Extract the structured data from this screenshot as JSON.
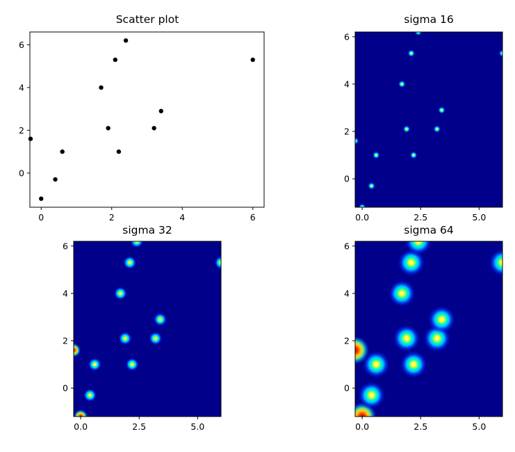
{
  "colors": {
    "heatmap_background": "#00008a",
    "point": "#000000",
    "colormap": "jet"
  },
  "chart_data": [
    {
      "type": "scatter",
      "title": "Scatter plot",
      "xlabel": "",
      "ylabel": "",
      "xlim": [
        -0.32,
        6.32
      ],
      "ylim": [
        -1.6,
        6.6
      ],
      "xticks": [
        "0",
        "2",
        "4",
        "6"
      ],
      "yticks": [
        "0",
        "2",
        "4",
        "6"
      ],
      "points": [
        {
          "x": -0.3,
          "y": 1.6
        },
        {
          "x": 0.0,
          "y": -1.2
        },
        {
          "x": 0.4,
          "y": -0.3
        },
        {
          "x": 0.6,
          "y": 1.0
        },
        {
          "x": 1.7,
          "y": 4.0
        },
        {
          "x": 1.9,
          "y": 2.1
        },
        {
          "x": 2.1,
          "y": 5.3
        },
        {
          "x": 2.2,
          "y": 1.0
        },
        {
          "x": 2.4,
          "y": 6.2
        },
        {
          "x": 3.2,
          "y": 2.1
        },
        {
          "x": 3.4,
          "y": 2.9
        },
        {
          "x": 6.0,
          "y": 5.3
        }
      ]
    },
    {
      "type": "heatmap",
      "title": "sigma 16",
      "sigma": 16,
      "xlim": [
        -0.3,
        6.0
      ],
      "ylim": [
        -1.2,
        6.2
      ],
      "xticks": [
        "0.0",
        "2.5",
        "5.0"
      ],
      "yticks": [
        "0",
        "2",
        "4",
        "6"
      ]
    },
    {
      "type": "heatmap",
      "title": "sigma 32",
      "sigma": 32,
      "xlim": [
        -0.3,
        6.0
      ],
      "ylim": [
        -1.2,
        6.2
      ],
      "xticks": [
        "0.0",
        "2.5",
        "5.0"
      ],
      "yticks": [
        "0",
        "2",
        "4",
        "6"
      ]
    },
    {
      "type": "heatmap",
      "title": "sigma 64",
      "sigma": 64,
      "xlim": [
        -0.3,
        6.0
      ],
      "ylim": [
        -1.2,
        6.2
      ],
      "xticks": [
        "0.0",
        "2.5",
        "5.0"
      ],
      "yticks": [
        "0",
        "2",
        "4",
        "6"
      ]
    }
  ]
}
